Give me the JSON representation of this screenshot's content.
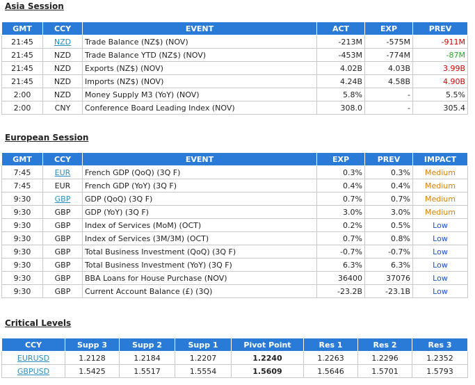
{
  "asia": {
    "title": "Asia Session",
    "headers": [
      "GMT",
      "CCY",
      "EVENT",
      "ACT",
      "EXP",
      "PREV"
    ],
    "rows": [
      {
        "gmt": "21:45",
        "ccy": "NZD",
        "ccy_link": true,
        "event": "Trade Balance (NZ$) (NOV)",
        "act": "-213M",
        "exp": "-575M",
        "prev": "-911M",
        "prev_color": "red"
      },
      {
        "gmt": "21:45",
        "ccy": "NZD",
        "ccy_link": false,
        "event": "Trade Balance YTD (NZ$) (NOV)",
        "act": "-453M",
        "exp": "-774M",
        "prev": "-87M",
        "prev_color": "green"
      },
      {
        "gmt": "21:45",
        "ccy": "NZD",
        "ccy_link": false,
        "event": "Exports (NZ$) (NOV)",
        "act": "4.02B",
        "exp": "4.03B",
        "prev": "3.99B",
        "prev_color": "red"
      },
      {
        "gmt": "21:45",
        "ccy": "NZD",
        "ccy_link": false,
        "event": "Imports (NZ$) (NOV)",
        "act": "4.24B",
        "exp": "4.58B",
        "prev": "4.90B",
        "prev_color": "red"
      },
      {
        "gmt": "2:00",
        "ccy": "NZD",
        "ccy_link": false,
        "event": "Money Supply M3 (YoY) (NOV)",
        "act": "5.8%",
        "exp": "-",
        "prev": "5.5%",
        "prev_color": "none"
      },
      {
        "gmt": "2:00",
        "ccy": "CNY",
        "ccy_link": false,
        "event": "Conference Board Leading Index (NOV)",
        "act": "308.0",
        "exp": "-",
        "prev": "305.4",
        "prev_color": "none"
      }
    ]
  },
  "europe": {
    "title": "European Session",
    "headers": [
      "GMT",
      "CCY",
      "EVENT",
      "EXP",
      "PREV",
      "IMPACT"
    ],
    "rows": [
      {
        "gmt": "7:45",
        "ccy": "EUR",
        "ccy_link": true,
        "event": "French GDP (QoQ) (3Q F)",
        "exp": "0.3%",
        "prev": "0.3%",
        "impact": "Medium"
      },
      {
        "gmt": "7:45",
        "ccy": "EUR",
        "ccy_link": false,
        "event": "French GDP (YoY) (3Q F)",
        "exp": "0.4%",
        "prev": "0.4%",
        "impact": "Medium"
      },
      {
        "gmt": "9:30",
        "ccy": "GBP",
        "ccy_link": true,
        "event": "GDP (QoQ) (3Q F)",
        "exp": "0.7%",
        "prev": "0.7%",
        "impact": "Medium"
      },
      {
        "gmt": "9:30",
        "ccy": "GBP",
        "ccy_link": false,
        "event": "GDP (YoY) (3Q F)",
        "exp": "3.0%",
        "prev": "3.0%",
        "impact": "Medium"
      },
      {
        "gmt": "9:30",
        "ccy": "GBP",
        "ccy_link": false,
        "event": "Index of Services (MoM) (OCT)",
        "exp": "0.2%",
        "prev": "0.5%",
        "impact": "Low"
      },
      {
        "gmt": "9:30",
        "ccy": "GBP",
        "ccy_link": false,
        "event": "Index of Services (3M/3M) (OCT)",
        "exp": "0.7%",
        "prev": "0.8%",
        "impact": "Low"
      },
      {
        "gmt": "9:30",
        "ccy": "GBP",
        "ccy_link": false,
        "event": "Total Business Investment (QoQ) (3Q F)",
        "exp": "-0.7%",
        "prev": "-0.7%",
        "impact": "Low"
      },
      {
        "gmt": "9:30",
        "ccy": "GBP",
        "ccy_link": false,
        "event": "Total Business Investment (YoY) (3Q F)",
        "exp": "6.3%",
        "prev": "6.3%",
        "impact": "Low"
      },
      {
        "gmt": "9:30",
        "ccy": "GBP",
        "ccy_link": false,
        "event": "BBA Loans for House Purchase (NOV)",
        "exp": "36400",
        "prev": "37076",
        "impact": "Low"
      },
      {
        "gmt": "9:30",
        "ccy": "GBP",
        "ccy_link": false,
        "event": "Current Account Balance (£) (3Q)",
        "exp": "-23.2B",
        "prev": "-23.1B",
        "impact": "Low"
      }
    ]
  },
  "levels": {
    "title": "Critical Levels",
    "headers": [
      "CCY",
      "Supp 3",
      "Supp 2",
      "Supp 1",
      "Pivot Point",
      "Res 1",
      "Res 2",
      "Res 3"
    ],
    "rows": [
      {
        "ccy": "EURUSD",
        "s3": "1.2128",
        "s2": "1.2184",
        "s1": "1.2207",
        "pivot": "1.2240",
        "r1": "1.2263",
        "r2": "1.2296",
        "r3": "1.2352"
      },
      {
        "ccy": "GBPUSD",
        "s3": "1.5425",
        "s2": "1.5517",
        "s1": "1.5554",
        "pivot": "1.5609",
        "r1": "1.5646",
        "r2": "1.5701",
        "r3": "1.5793"
      }
    ]
  },
  "colors": {
    "header_bg": "#2a7bd8",
    "red": "#d40000",
    "green": "#22aa22",
    "medium": "#d9820a",
    "low": "#1a4fd0",
    "link": "#2a8fc0"
  }
}
